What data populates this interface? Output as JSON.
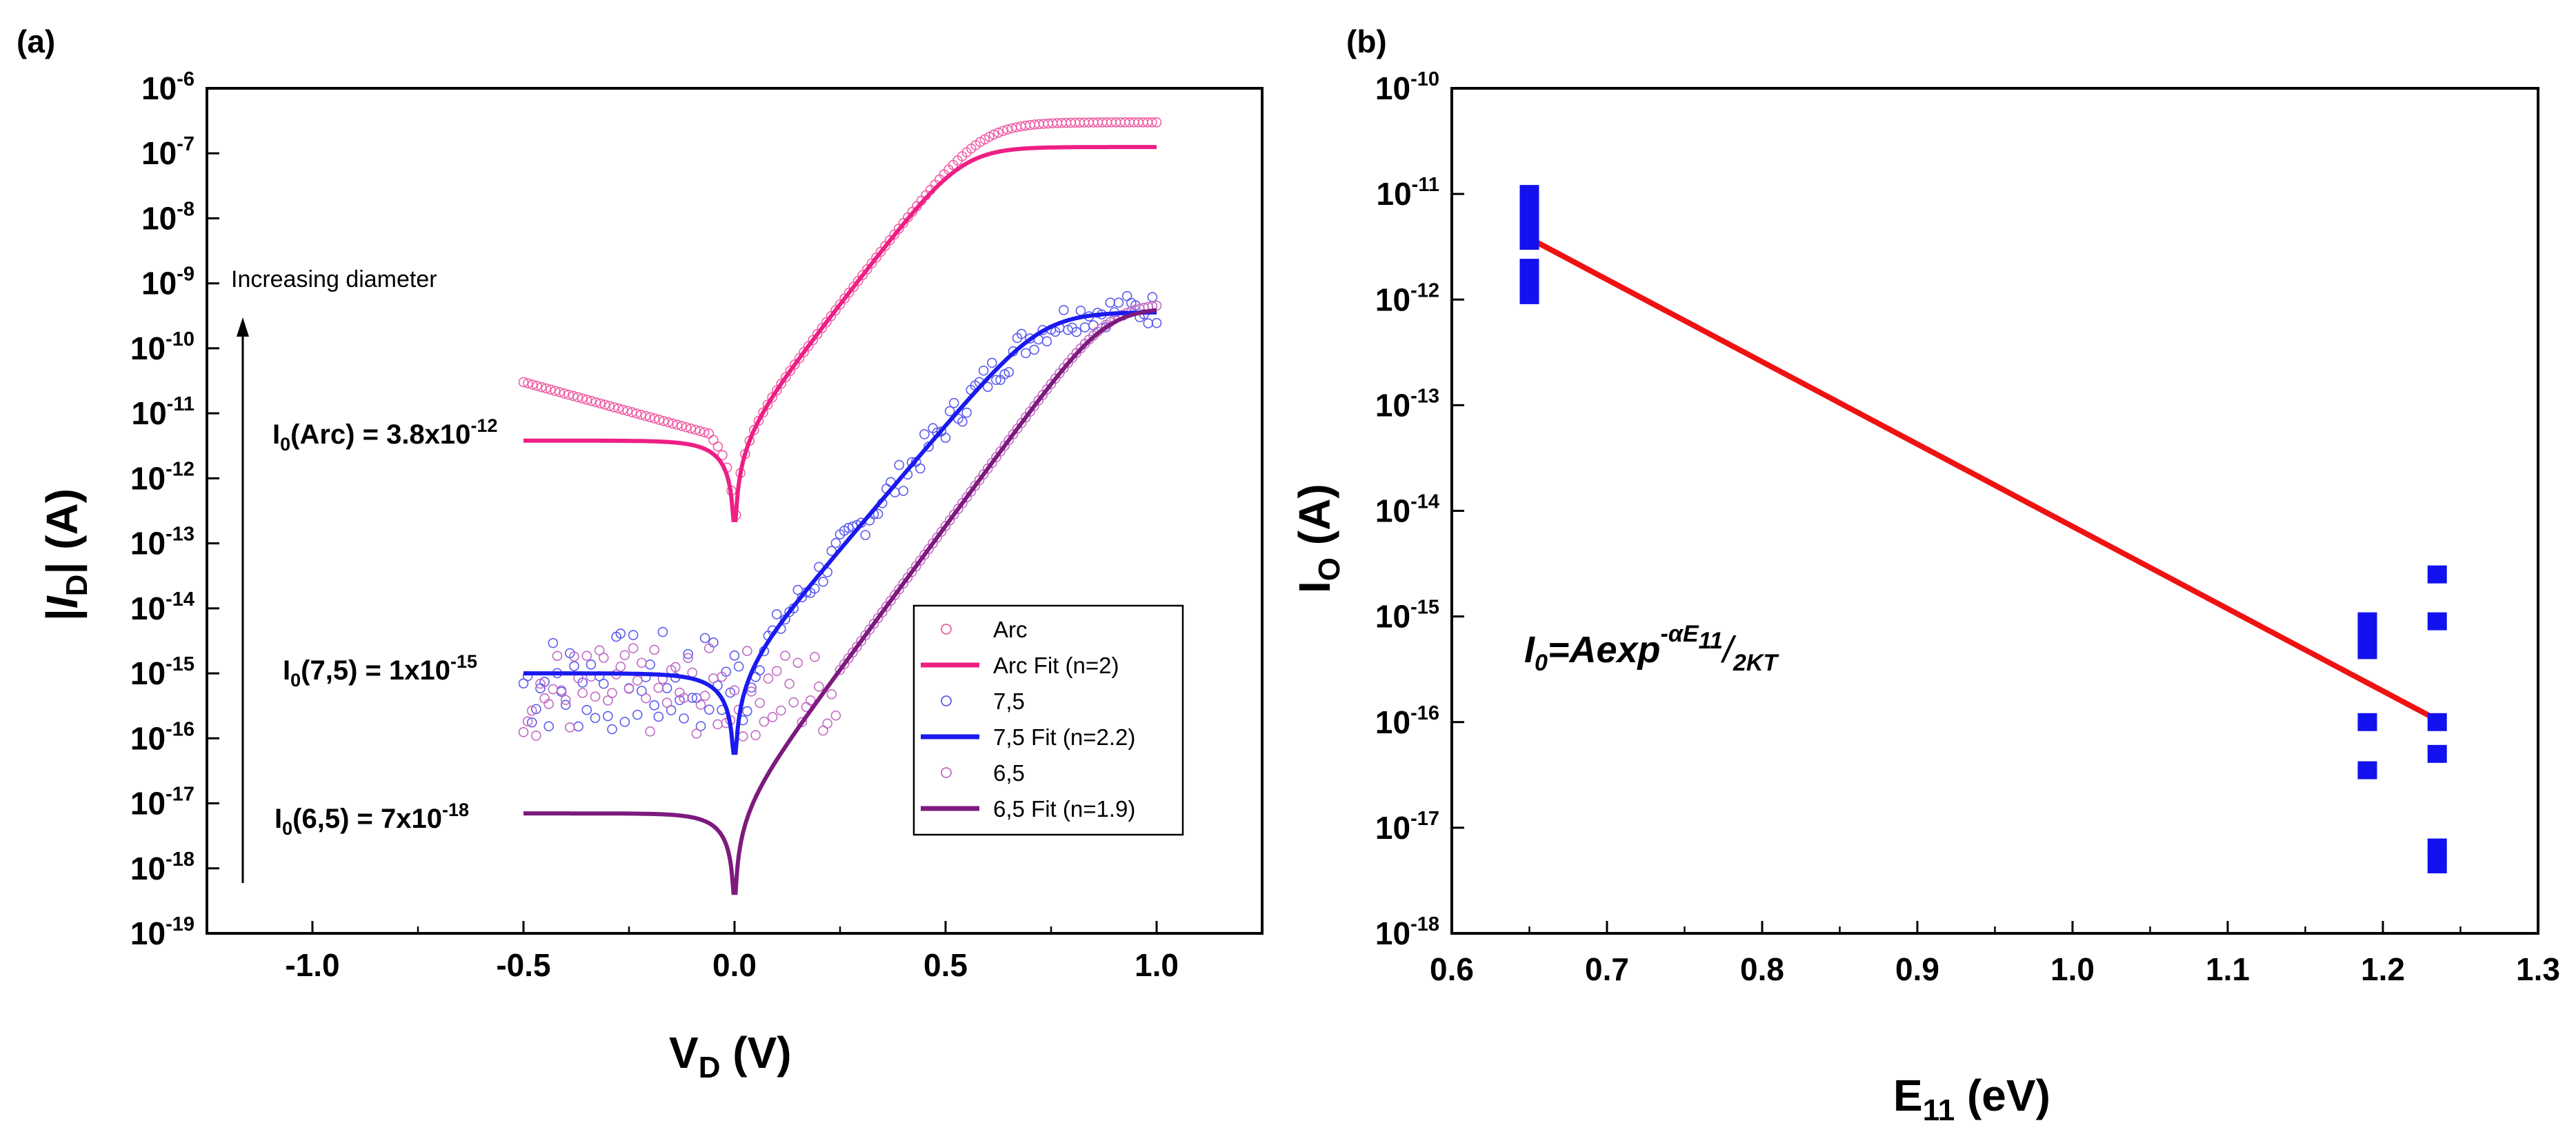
{
  "chart_data": [
    {
      "panel_label": "(a)",
      "type": "scatter",
      "xlabel": {
        "main": "V",
        "sub": "D",
        "rest": " (V)"
      },
      "ylabel": {
        "pre": "|",
        "main": "I",
        "sub": "D",
        "rest": "| (A)"
      },
      "xlim": [
        -1.25,
        1.25
      ],
      "ylim_log10": [
        -19,
        -6
      ],
      "yscale": "log",
      "x_ticks": [
        "-1.0",
        "-0.5",
        "0.0",
        "0.5",
        "1.0"
      ],
      "x_tick_values": [
        -1.0,
        -0.5,
        0.0,
        0.5,
        1.0
      ],
      "y_tick_exponents": [
        "-19",
        "-18",
        "-17",
        "-16",
        "-15",
        "-14",
        "-13",
        "-12",
        "-11",
        "-10",
        "-9",
        "-8",
        "-7",
        "-6"
      ],
      "y_tick_base": "10",
      "arrow_label": "Increasing diameter",
      "annotations": [
        {
          "pre": "I",
          "sub": "0",
          "mid": "(Arc) = 3.8x10",
          "sup": "-12"
        },
        {
          "pre": "I",
          "sub": "0",
          "mid": "(7,5) = 1x10",
          "sup": "-15"
        },
        {
          "pre": "I",
          "sub": "0",
          "mid": "(6,5) = 7x10",
          "sup": "-18"
        }
      ],
      "legend_position": "lower-right",
      "colors": {
        "arc": "#ee1f84",
        "s75": "#1a1aee",
        "s65": "#7d1a7e",
        "arc_marker": "#ef5fa6",
        "s75_marker": "#5b5bef",
        "s65_marker": "#c16ac2"
      },
      "series": [
        {
          "name": "Arc",
          "kind": "markers",
          "x_range": [
            -0.5,
            1.0
          ],
          "I0": 3.8e-12,
          "n": 2
        },
        {
          "name": "Arc Fit (n=2)",
          "kind": "line",
          "x_range": [
            -0.5,
            1.0
          ],
          "I0": 3.8e-12,
          "n": 2,
          "I_at_1V": 1.2e-07
        },
        {
          "name": "7,5",
          "kind": "markers",
          "x_range": [
            -0.5,
            1.0
          ],
          "I0": 1e-15,
          "n": 2.2
        },
        {
          "name": "7,5 Fit (n=2.2)",
          "kind": "line",
          "x_range": [
            -0.5,
            1.0
          ],
          "I0": 1e-15,
          "n": 2.2,
          "I_at_1V": 3.5e-10
        },
        {
          "name": "6,5",
          "kind": "markers",
          "x_range": [
            0.0,
            1.0
          ],
          "I0": 7e-18,
          "n": 1.9
        },
        {
          "name": "6,5 Fit (n=1.9)",
          "kind": "line",
          "x_range": [
            -0.5,
            1.0
          ],
          "I0": 7e-18,
          "n": 1.9,
          "I_at_1V": 3.8e-10
        }
      ]
    },
    {
      "panel_label": "(b)",
      "type": "scatter",
      "xlabel": {
        "main": "E",
        "sub": "11",
        "rest": " (eV)"
      },
      "ylabel": {
        "main": "I",
        "sub": "O",
        "rest": " (A)"
      },
      "xlim": [
        0.6,
        1.3
      ],
      "ylim_log10": [
        -18,
        -10
      ],
      "yscale": "log",
      "x_ticks": [
        "0.6",
        "0.7",
        "0.8",
        "0.9",
        "1.0",
        "1.1",
        "1.2",
        "1.3"
      ],
      "x_tick_values": [
        0.6,
        0.7,
        0.8,
        0.9,
        1.0,
        1.1,
        1.2,
        1.3
      ],
      "y_tick_exponents": [
        "-18",
        "-17",
        "-16",
        "-15",
        "-14",
        "-13",
        "-12",
        "-11",
        "-10"
      ],
      "y_tick_base": "10",
      "equation": {
        "lhs": "I",
        "lhs_sub": "0",
        "mid": "=Aexp",
        "sup": "-αE",
        "sup_sub": "11",
        "tail": "/",
        "tail_sub": "2KT"
      },
      "colors": {
        "points": "#1212ee",
        "fit": "#ee1212"
      },
      "points": [
        {
          "x": 0.65,
          "y": 1e-11
        },
        {
          "x": 0.65,
          "y": 8e-12
        },
        {
          "x": 0.65,
          "y": 6e-12
        },
        {
          "x": 0.65,
          "y": 4.5e-12
        },
        {
          "x": 0.65,
          "y": 3.6e-12
        },
        {
          "x": 0.65,
          "y": 2e-12
        },
        {
          "x": 0.65,
          "y": 1.5e-12
        },
        {
          "x": 0.65,
          "y": 1.1e-12
        },
        {
          "x": 1.19,
          "y": 9e-16
        },
        {
          "x": 1.19,
          "y": 6.5e-16
        },
        {
          "x": 1.19,
          "y": 4.8e-16
        },
        {
          "x": 1.19,
          "y": 1e-16
        },
        {
          "x": 1.19,
          "y": 3.5e-17
        },
        {
          "x": 1.235,
          "y": 2.5e-15
        },
        {
          "x": 1.235,
          "y": 9e-16
        },
        {
          "x": 1.235,
          "y": 1e-16
        },
        {
          "x": 1.235,
          "y": 5e-17
        },
        {
          "x": 1.235,
          "y": 6.5e-18
        },
        {
          "x": 1.235,
          "y": 4.5e-18
        }
      ],
      "fit_line": {
        "x": [
          0.65,
          1.235
        ],
        "y": [
          3.8e-12,
          1.05e-16
        ]
      }
    }
  ]
}
